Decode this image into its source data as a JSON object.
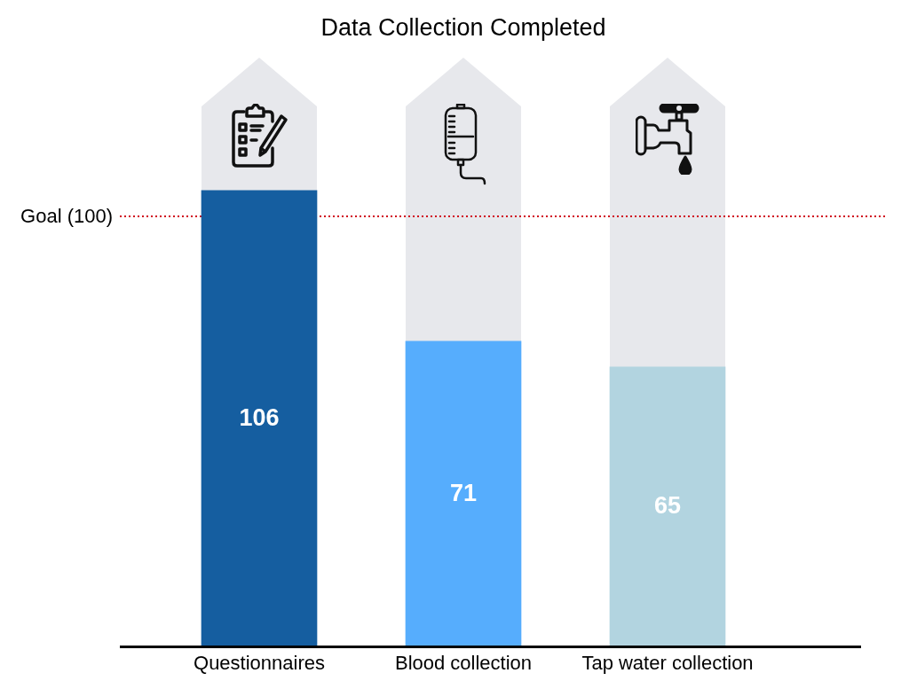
{
  "chart_data": {
    "type": "bar",
    "title": "Data Collection Completed",
    "categories": [
      "Questionnaires",
      "Blood collection",
      "Tap water collection"
    ],
    "values": [
      106,
      71,
      65
    ],
    "colors": [
      "#155ea0",
      "#56adfd",
      "#b2d4e0"
    ],
    "data_labels": true,
    "tick_labels": "x",
    "grid": false,
    "legend": false,
    "ref_lines": [
      {
        "axis": "y",
        "value": 100,
        "label": "Goal (100)",
        "color": "#d0021b",
        "line_style": "dotted"
      }
    ]
  }
}
